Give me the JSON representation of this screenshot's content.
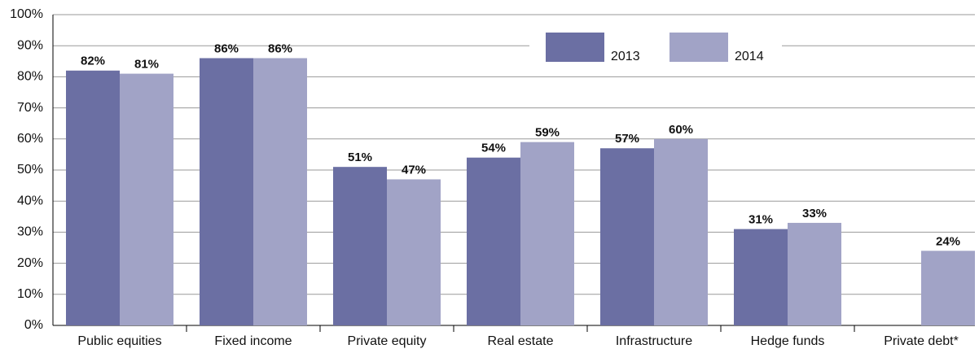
{
  "chart_data": {
    "type": "bar",
    "categories": [
      "Public equities",
      "Fixed income",
      "Private equity",
      "Real estate",
      "Infrastructure",
      "Hedge funds",
      "Private debt*"
    ],
    "series": [
      {
        "name": "2013",
        "color": "#6b6fa3",
        "values": [
          82,
          86,
          51,
          54,
          57,
          31,
          null
        ],
        "value_labels": [
          "82%",
          "86%",
          "51%",
          "54%",
          "57%",
          "31%",
          null
        ]
      },
      {
        "name": "2014",
        "color": "#a1a3c6",
        "values": [
          81,
          86,
          47,
          59,
          60,
          33,
          24
        ],
        "value_labels": [
          "81%",
          "86%",
          "47%",
          "59%",
          "60%",
          "33%",
          "24%"
        ]
      }
    ],
    "ylim": [
      0,
      100
    ],
    "yticks": [
      {
        "value": 0,
        "label": "0%"
      },
      {
        "value": 10,
        "label": "10%"
      },
      {
        "value": 20,
        "label": "20%"
      },
      {
        "value": 30,
        "label": "30%"
      },
      {
        "value": 40,
        "label": "40%"
      },
      {
        "value": 50,
        "label": "50%"
      },
      {
        "value": 60,
        "label": "60%"
      },
      {
        "value": 70,
        "label": "70%"
      },
      {
        "value": 80,
        "label": "80%"
      },
      {
        "value": 90,
        "label": "90%"
      },
      {
        "value": 100,
        "label": "100%"
      }
    ],
    "grid": true,
    "legend": "top-right"
  }
}
